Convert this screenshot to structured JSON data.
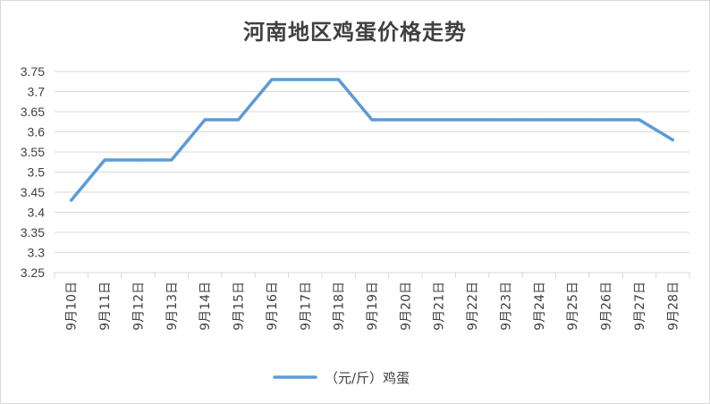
{
  "chart_data": {
    "type": "line",
    "title": "河南地区鸡蛋价格走势",
    "categories": [
      "9月10日",
      "9月11日",
      "9月12日",
      "9月13日",
      "9月14日",
      "9月15日",
      "9月16日",
      "9月17日",
      "9月18日",
      "9月19日",
      "9月20日",
      "9月21日",
      "9月22日",
      "9月23日",
      "9月24日",
      "9月25日",
      "9月26日",
      "9月27日",
      "9月28日"
    ],
    "series": [
      {
        "name": "（元/斤）鸡蛋",
        "values": [
          3.43,
          3.53,
          3.53,
          3.53,
          3.63,
          3.63,
          3.73,
          3.73,
          3.73,
          3.63,
          3.63,
          3.63,
          3.63,
          3.63,
          3.63,
          3.63,
          3.63,
          3.63,
          3.58
        ]
      }
    ],
    "ylim": [
      3.25,
      3.75
    ],
    "yticks": [
      "3.25",
      "3.3",
      "3.35",
      "3.4",
      "3.45",
      "3.5",
      "3.55",
      "3.6",
      "3.65",
      "3.7",
      "3.75"
    ],
    "grid": true,
    "legend": "bottom",
    "colors": {
      "line": "#5b9bd5",
      "grid": "#d9d9d9",
      "text": "#404040"
    }
  }
}
